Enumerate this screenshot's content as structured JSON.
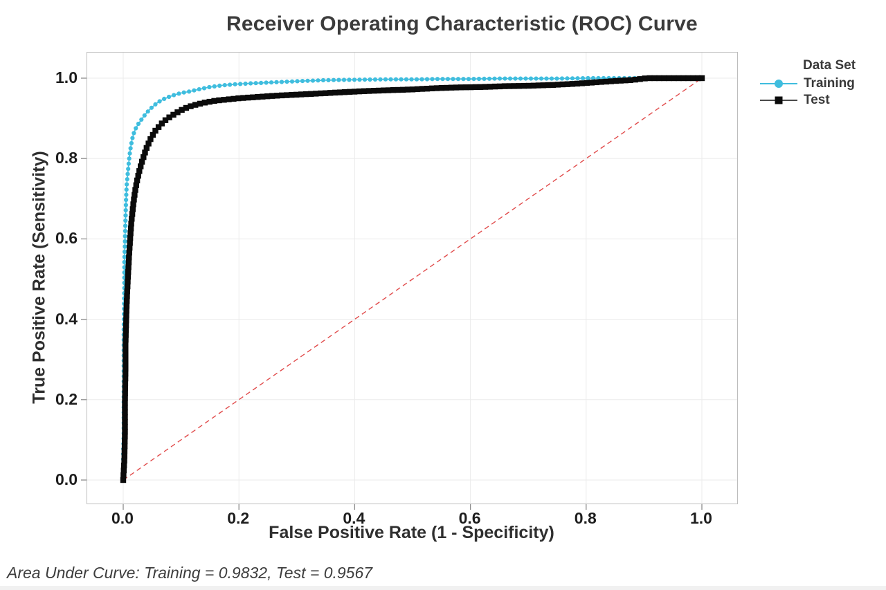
{
  "title": "Receiver Operating Characteristic (ROC) Curve",
  "footer": "Area Under Curve: Training = 0.9832, Test = 0.9567",
  "axes": {
    "x": {
      "label": "False Positive Rate (1 - Specificity)",
      "ticks": [
        "0.0",
        "0.2",
        "0.4",
        "0.6",
        "0.8",
        "1.0"
      ],
      "tick_values": [
        0,
        0.2,
        0.4,
        0.6,
        0.8,
        1.0
      ],
      "range": [
        0,
        1
      ]
    },
    "y": {
      "label": "True Positive Rate (Sensitivity)",
      "ticks": [
        "0.0",
        "0.2",
        "0.4",
        "0.6",
        "0.8",
        "1.0"
      ],
      "tick_values": [
        0,
        0.2,
        0.4,
        0.6,
        0.8,
        1.0
      ],
      "range": [
        0,
        1
      ]
    }
  },
  "legend": {
    "title": "Data Set",
    "items": [
      {
        "label": "Training",
        "marker": "circle",
        "color": "#3fbdde",
        "line_color": "#3fbdde"
      },
      {
        "label": "Test",
        "marker": "square",
        "color": "#0b0b0b",
        "line_color": "#4a4a4a"
      }
    ]
  },
  "colors": {
    "training": "#3fbdde",
    "test": "#0b0b0b",
    "test_line": "#2b2b2b",
    "diagonal": "#e14b4b",
    "grid": "#ebebeb",
    "frame": "#bdbdbd",
    "tick_mark": "#8c8c8c",
    "title_text": "#3b3b3b",
    "axis_text": "#2f2f2f",
    "tick_text": "#1e1e1e",
    "footer_text": "#3d3d3d"
  },
  "chart_data": {
    "type": "line",
    "title": "Receiver Operating Characteristic (ROC) Curve",
    "xlabel": "False Positive Rate (1 - Specificity)",
    "ylabel": "True Positive Rate (Sensitivity)",
    "xlim": [
      0,
      1
    ],
    "ylim": [
      0,
      1
    ],
    "grid": true,
    "legend_position": "right",
    "reference_line": {
      "type": "diagonal",
      "style": "dashed",
      "color": "#e14b4b",
      "from": [
        0,
        0
      ],
      "to": [
        1,
        1
      ]
    },
    "series": [
      {
        "name": "Training",
        "auc": 0.9832,
        "marker": "circle",
        "color": "#3fbdde",
        "line_color": "#3fbdde",
        "line_width": 1.6,
        "marker_size": 6.2,
        "marker_spacing": 7.5,
        "points": [
          [
            0.0,
            0.0
          ],
          [
            0.0,
            0.06
          ],
          [
            0.001,
            0.12
          ],
          [
            0.001,
            0.25
          ],
          [
            0.001,
            0.38
          ],
          [
            0.002,
            0.48
          ],
          [
            0.002,
            0.54
          ],
          [
            0.003,
            0.59
          ],
          [
            0.004,
            0.65
          ],
          [
            0.005,
            0.7
          ],
          [
            0.006,
            0.735
          ],
          [
            0.008,
            0.765
          ],
          [
            0.01,
            0.795
          ],
          [
            0.012,
            0.82
          ],
          [
            0.015,
            0.845
          ],
          [
            0.018,
            0.862
          ],
          [
            0.022,
            0.876
          ],
          [
            0.027,
            0.888
          ],
          [
            0.033,
            0.9
          ],
          [
            0.04,
            0.913
          ],
          [
            0.05,
            0.928
          ],
          [
            0.06,
            0.94
          ],
          [
            0.07,
            0.948
          ],
          [
            0.08,
            0.954
          ],
          [
            0.09,
            0.959
          ],
          [
            0.1,
            0.963
          ],
          [
            0.115,
            0.967
          ],
          [
            0.13,
            0.972
          ],
          [
            0.15,
            0.978
          ],
          [
            0.17,
            0.982
          ],
          [
            0.195,
            0.985
          ],
          [
            0.22,
            0.987
          ],
          [
            0.25,
            0.989
          ],
          [
            0.28,
            0.991
          ],
          [
            0.31,
            0.993
          ],
          [
            0.35,
            0.995
          ],
          [
            0.4,
            0.996
          ],
          [
            0.45,
            0.997
          ],
          [
            0.5,
            0.997
          ],
          [
            0.55,
            0.998
          ],
          [
            0.6,
            0.998
          ],
          [
            0.65,
            0.999
          ],
          [
            0.7,
            0.999
          ],
          [
            0.75,
            0.999
          ],
          [
            0.8,
            1.0
          ],
          [
            0.87,
            1.0
          ],
          [
            1.0,
            1.0
          ]
        ]
      },
      {
        "name": "Test",
        "auc": 0.9567,
        "marker": "square",
        "color": "#0b0b0b",
        "line_color": "#2b2b2b",
        "line_width": 2.4,
        "marker_size": 8.4,
        "marker_spacing": 7.0,
        "points": [
          [
            0.0,
            0.0
          ],
          [
            0.002,
            0.05
          ],
          [
            0.003,
            0.12
          ],
          [
            0.003,
            0.2
          ],
          [
            0.004,
            0.28
          ],
          [
            0.004,
            0.34
          ],
          [
            0.005,
            0.39
          ],
          [
            0.006,
            0.44
          ],
          [
            0.008,
            0.5
          ],
          [
            0.01,
            0.555
          ],
          [
            0.012,
            0.6
          ],
          [
            0.014,
            0.64
          ],
          [
            0.017,
            0.68
          ],
          [
            0.02,
            0.715
          ],
          [
            0.024,
            0.745
          ],
          [
            0.028,
            0.77
          ],
          [
            0.033,
            0.795
          ],
          [
            0.04,
            0.825
          ],
          [
            0.047,
            0.848
          ],
          [
            0.055,
            0.868
          ],
          [
            0.065,
            0.885
          ],
          [
            0.075,
            0.898
          ],
          [
            0.09,
            0.912
          ],
          [
            0.105,
            0.924
          ],
          [
            0.12,
            0.932
          ],
          [
            0.14,
            0.939
          ],
          [
            0.16,
            0.944
          ],
          [
            0.18,
            0.947
          ],
          [
            0.2,
            0.95
          ],
          [
            0.23,
            0.953
          ],
          [
            0.26,
            0.956
          ],
          [
            0.3,
            0.959
          ],
          [
            0.34,
            0.962
          ],
          [
            0.38,
            0.965
          ],
          [
            0.42,
            0.968
          ],
          [
            0.46,
            0.97
          ],
          [
            0.5,
            0.972
          ],
          [
            0.54,
            0.975
          ],
          [
            0.58,
            0.977
          ],
          [
            0.62,
            0.978
          ],
          [
            0.66,
            0.98
          ],
          [
            0.7,
            0.981
          ],
          [
            0.74,
            0.983
          ],
          [
            0.78,
            0.986
          ],
          [
            0.82,
            0.99
          ],
          [
            0.85,
            0.993
          ],
          [
            0.875,
            0.995
          ],
          [
            0.895,
            0.998
          ],
          [
            0.905,
            1.0
          ],
          [
            1.0,
            1.0
          ]
        ]
      }
    ]
  }
}
